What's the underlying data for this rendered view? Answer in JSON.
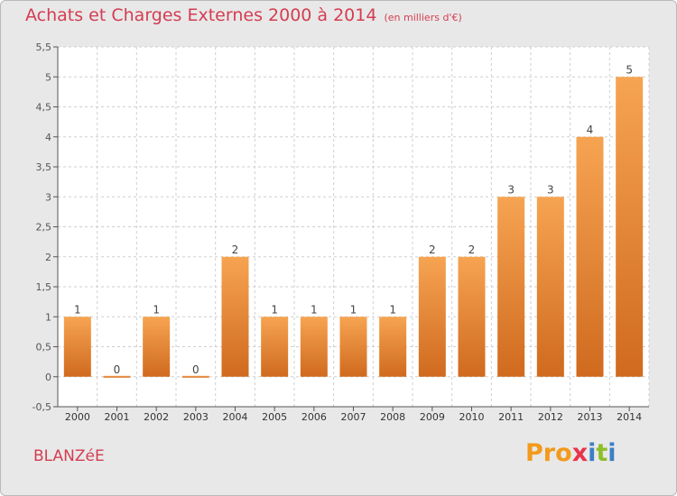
{
  "title": "Achats et Charges Externes 2000 à 2014",
  "subtitle": "(en milliers d'€)",
  "commune": "BLANZéE",
  "brand": "Proxiti",
  "colors": {
    "bar_top": "#f6a452",
    "bar_bottom": "#d06a1e",
    "title": "#d43d52",
    "plot_bg": "#ffffff",
    "frame_bg": "#e8e8e8"
  },
  "chart_data": {
    "type": "bar",
    "categories": [
      "2000",
      "2001",
      "2002",
      "2003",
      "2004",
      "2005",
      "2006",
      "2007",
      "2008",
      "2009",
      "2010",
      "2011",
      "2012",
      "2013",
      "2014"
    ],
    "values": [
      1,
      0,
      1,
      0,
      2,
      1,
      1,
      1,
      1,
      2,
      2,
      3,
      3,
      4,
      5
    ],
    "data_labels": [
      "1",
      "0",
      "1",
      "0",
      "2",
      "1",
      "1",
      "1",
      "1",
      "2",
      "2",
      "3",
      "3",
      "4",
      "5"
    ],
    "ylim": [
      -0.5,
      5.5
    ],
    "yticks": [
      "-0,5",
      "0",
      "0,5",
      "1",
      "1,5",
      "2",
      "2,5",
      "3",
      "3,5",
      "4",
      "4,5",
      "5",
      "5,5"
    ],
    "ytick_values": [
      -0.5,
      0,
      0.5,
      1,
      1.5,
      2,
      2.5,
      3,
      3.5,
      4,
      4.5,
      5,
      5.5
    ],
    "grid": true,
    "legend": "none"
  }
}
